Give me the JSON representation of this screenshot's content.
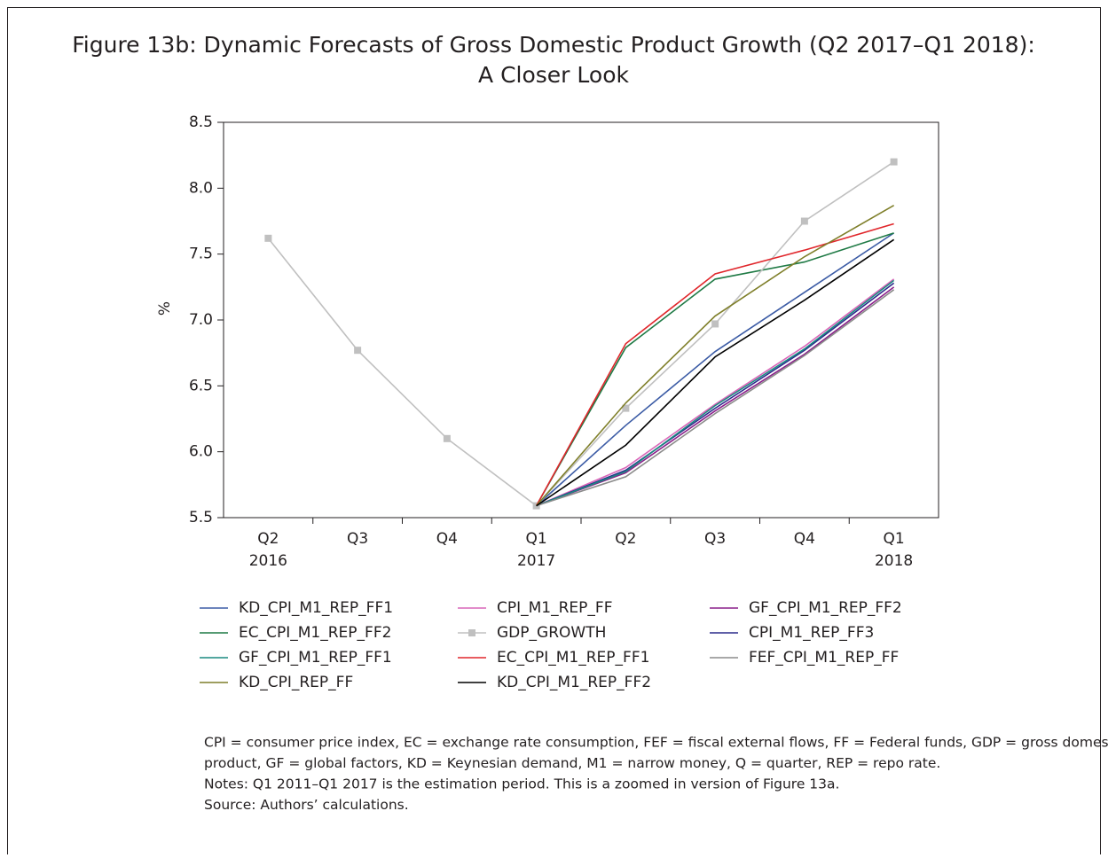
{
  "chart_data": {
    "type": "line",
    "title": [
      "Figure 13b: Dynamic Forecasts of Gross Domestic Product Growth (Q2 2017–Q1 2018):",
      "A Closer Look"
    ],
    "y_label": "%",
    "categories": [
      [
        "Q2",
        "2016"
      ],
      [
        "Q3"
      ],
      [
        "Q4"
      ],
      [
        "Q1",
        "2017"
      ],
      [
        "Q2"
      ],
      [
        "Q3"
      ],
      [
        "Q4"
      ],
      [
        "Q1",
        "2018"
      ]
    ],
    "ylim": [
      5.5,
      8.5
    ],
    "yticks": [
      5.5,
      {
        "value": 6,
        "label": "6.0"
      },
      6.5,
      {
        "value": 7,
        "label": "7.0"
      },
      7.5,
      {
        "value": 8,
        "label": "8.0"
      },
      8.5
    ],
    "series": [
      {
        "name": "KD_CPI_M1_REP_FF1",
        "color": "#3b5ba5",
        "values": [
          null,
          null,
          null,
          5.59,
          6.2,
          6.76,
          7.21,
          7.66
        ]
      },
      {
        "name": "CPI_M1_REP_FF",
        "color": "#d966b8",
        "values": [
          null,
          null,
          null,
          5.59,
          5.88,
          6.36,
          6.8,
          7.31
        ]
      },
      {
        "name": "GF_CPI_M1_REP_FF2",
        "color": "#8a1f8a",
        "values": [
          null,
          null,
          null,
          5.59,
          5.84,
          6.31,
          6.74,
          7.25
        ]
      },
      {
        "name": "EC_CPI_M1_REP_FF2",
        "color": "#1f7a45",
        "values": [
          null,
          null,
          null,
          5.59,
          6.79,
          7.31,
          7.44,
          7.66
        ]
      },
      {
        "name": "GDP_GROWTH",
        "color": "#c0c0c0",
        "marker": "square",
        "values": [
          7.62,
          6.77,
          6.1,
          5.59,
          6.33,
          6.97,
          7.75,
          8.2
        ]
      },
      {
        "name": "CPI_M1_REP_FF3",
        "color": "#2b2b8c",
        "values": [
          null,
          null,
          null,
          5.59,
          5.86,
          6.33,
          6.77,
          7.28
        ]
      },
      {
        "name": "GF_CPI_M1_REP_FF1",
        "color": "#1a8a80",
        "values": [
          null,
          null,
          null,
          5.59,
          5.85,
          6.35,
          6.78,
          7.3
        ]
      },
      {
        "name": "EC_CPI_M1_REP_FF1",
        "color": "#e0262b",
        "values": [
          null,
          null,
          null,
          5.59,
          6.82,
          7.35,
          7.53,
          7.73
        ]
      },
      {
        "name": "FEF_CPI_M1_REP_FF",
        "color": "#8c8c8c",
        "values": [
          null,
          null,
          null,
          5.59,
          5.81,
          6.29,
          6.73,
          7.23
        ]
      },
      {
        "name": "KD_CPI_REP_FF",
        "color": "#7f7f2a",
        "values": [
          null,
          null,
          null,
          5.59,
          6.37,
          7.03,
          7.48,
          7.87
        ]
      },
      {
        "name": "KD_CPI_M1_REP_FF2",
        "color": "#000000",
        "values": [
          null,
          null,
          null,
          5.59,
          6.05,
          6.72,
          7.15,
          7.61
        ]
      }
    ],
    "notes": [
      "CPI = consumer price index, EC = exchange rate consumption, FEF = fiscal external flows, FF = Federal funds, GDP = gross domestic",
      "product, GF = global factors, KD = Keynesian demand, M1 = narrow money, Q = quarter, REP = repo rate.",
      "Notes: Q1 2011–Q1 2017 is the estimation period. This is a zoomed in version of Figure 13a.",
      "Source: Authors’ calculations."
    ]
  }
}
